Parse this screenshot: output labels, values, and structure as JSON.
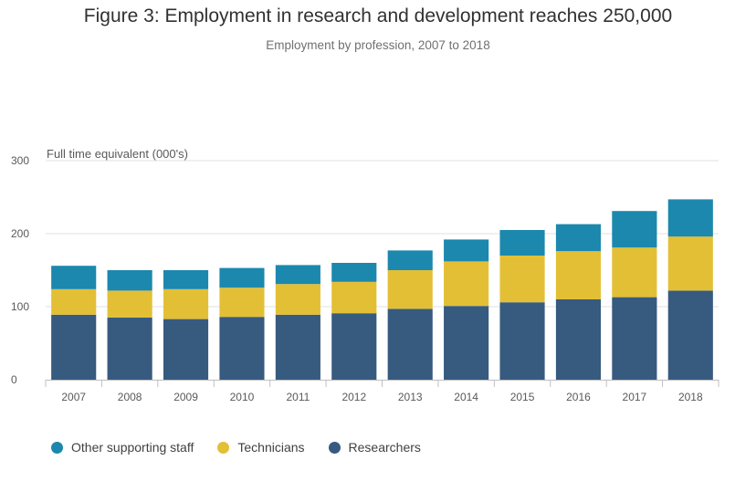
{
  "title": "Figure 3: Employment in research and development reaches 250,000",
  "subtitle": "Employment by profession, 2007 to 2018",
  "chart_data": {
    "type": "bar",
    "stacked": true,
    "categories": [
      "2007",
      "2008",
      "2009",
      "2010",
      "2011",
      "2012",
      "2013",
      "2014",
      "2015",
      "2016",
      "2017",
      "2018"
    ],
    "series": [
      {
        "name": "Researchers",
        "color": "#375a7f",
        "values": [
          89,
          85,
          83,
          86,
          89,
          91,
          97,
          101,
          106,
          110,
          113,
          122
        ]
      },
      {
        "name": "Technicians",
        "color": "#e3bf36",
        "values": [
          35,
          37,
          41,
          40,
          42,
          43,
          53,
          61,
          64,
          66,
          68,
          74
        ]
      },
      {
        "name": "Other supporting staff",
        "color": "#1c88ad",
        "values": [
          32,
          28,
          26,
          27,
          26,
          26,
          27,
          30,
          35,
          37,
          50,
          51
        ]
      }
    ],
    "ylabel": "Full time equivalent (000's)",
    "yticks": [
      0,
      100,
      200,
      300
    ],
    "ylim": [
      0,
      300
    ],
    "grid": true,
    "legend_position": "bottom-left"
  },
  "legend": [
    {
      "label": "Other supporting staff",
      "color": "#1c88ad"
    },
    {
      "label": "Technicians",
      "color": "#e3bf36"
    },
    {
      "label": "Researchers",
      "color": "#375a7f"
    }
  ]
}
